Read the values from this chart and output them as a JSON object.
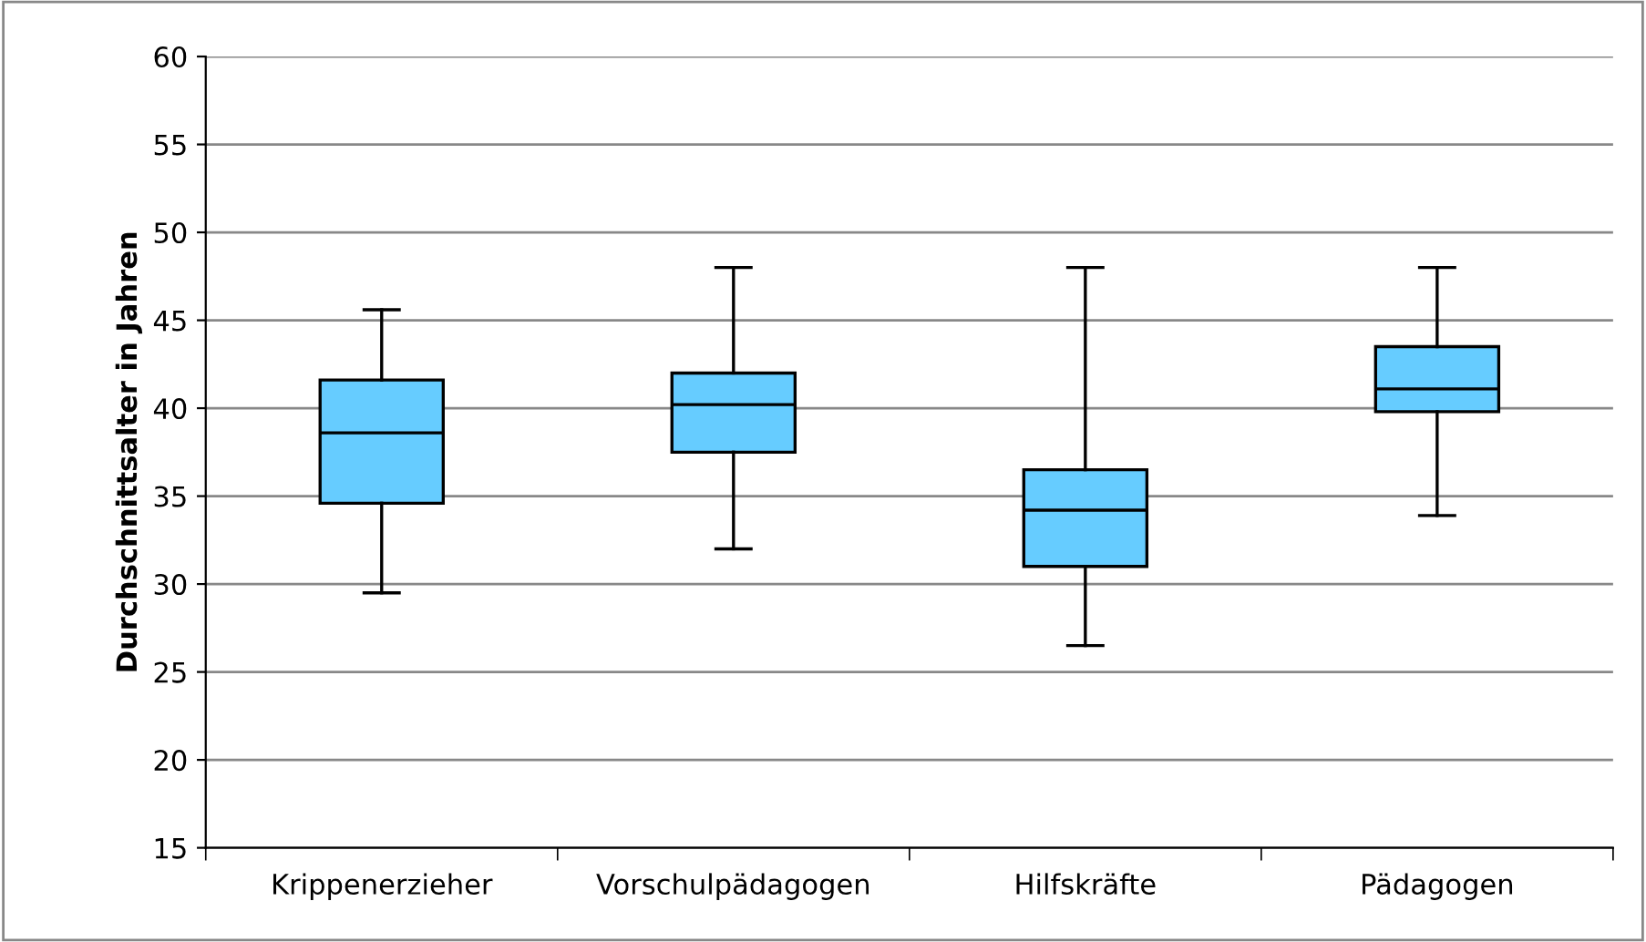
{
  "chart_data": {
    "type": "box",
    "ylabel": "Durchschnittsalter in Jahren",
    "categories": [
      "Krippenerzieher",
      "Vorschulpädagogen",
      "Hilfskräfte",
      "Pädagogen"
    ],
    "boxes": [
      {
        "low": 29.5,
        "q1": 34.6,
        "median": 38.6,
        "q3": 41.6,
        "high": 45.6
      },
      {
        "low": 32.0,
        "q1": 37.5,
        "median": 40.2,
        "q3": 42.0,
        "high": 48.0
      },
      {
        "low": 26.5,
        "q1": 31.0,
        "median": 34.2,
        "q3": 36.5,
        "high": 48.0
      },
      {
        "low": 33.9,
        "q1": 39.8,
        "median": 41.1,
        "q3": 43.5,
        "high": 48.0
      }
    ],
    "color": "#66ccff",
    "ylim": [
      15,
      60
    ],
    "yticks": [
      15,
      20,
      25,
      30,
      35,
      40,
      45,
      50,
      55,
      60
    ],
    "grid": "y"
  }
}
